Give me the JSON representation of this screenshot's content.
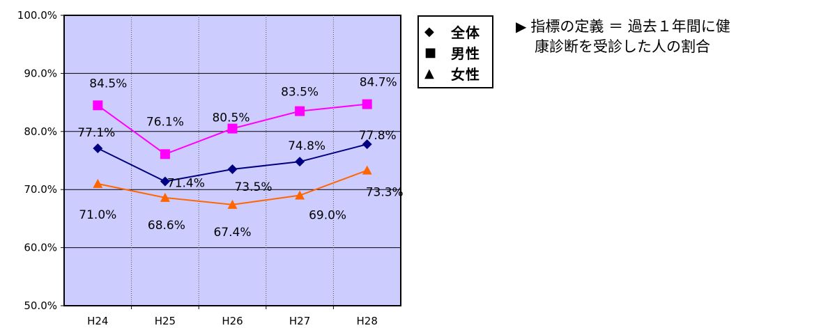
{
  "chart_data": {
    "type": "line",
    "categories": [
      "H24",
      "H25",
      "H26",
      "H27",
      "H28"
    ],
    "ylim": [
      50,
      100
    ],
    "yticks": [
      "50.0%",
      "60.0%",
      "70.0%",
      "80.0%",
      "90.0%",
      "100.0%"
    ],
    "grid": true,
    "plot_background": "#ccccff",
    "series": [
      {
        "name": "全体",
        "key": "zentai",
        "marker": "diamond",
        "color": "#000080",
        "values": [
          77.1,
          71.4,
          73.5,
          74.8,
          77.8
        ],
        "labels": [
          "77.1%",
          "71.4%",
          "73.5%",
          "74.8%",
          "77.8%"
        ]
      },
      {
        "name": "男性",
        "key": "dansei",
        "marker": "square",
        "color": "#ff00ff",
        "values": [
          84.5,
          76.1,
          80.5,
          83.5,
          84.7
        ],
        "labels": [
          "84.5%",
          "76.1%",
          "80.5%",
          "83.5%",
          "84.7%"
        ]
      },
      {
        "name": "女性",
        "key": "josei",
        "marker": "triangle",
        "color": "#ff6600",
        "values": [
          71.0,
          68.6,
          67.4,
          69.0,
          73.3
        ],
        "labels": [
          "71.0%",
          "68.6%",
          "67.4%",
          "69.0%",
          "73.3%"
        ]
      }
    ],
    "legend_position": "right"
  },
  "legend": {
    "items": [
      {
        "symbol": "◆",
        "label": "全体"
      },
      {
        "symbol": "■",
        "label": "男性"
      },
      {
        "symbol": "▲",
        "label": "女性"
      }
    ]
  },
  "note": {
    "arrow": "▶",
    "line1": "指標の定義 ＝ 過去１年間に健",
    "line2": "康診断を受診した人の割合"
  }
}
